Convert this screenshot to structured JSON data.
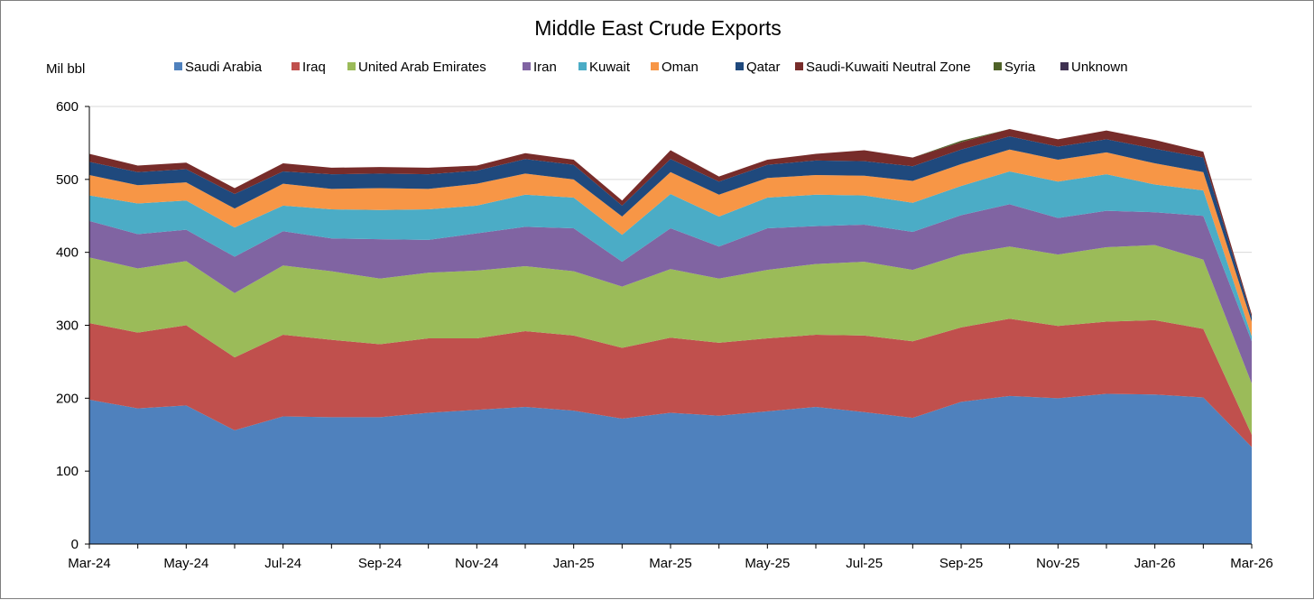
{
  "chart_data": {
    "type": "area",
    "stacked": true,
    "title": "Middle East Crude Exports",
    "ylabel": "Mil bbl",
    "xlabel": "",
    "ylim": [
      0,
      600
    ],
    "yticks": [
      0,
      100,
      200,
      300,
      400,
      500,
      600
    ],
    "grid": true,
    "legend_position": "top",
    "x": [
      "Mar-24",
      "Apr-24",
      "May-24",
      "Jun-24",
      "Jul-24",
      "Aug-24",
      "Sep-24",
      "Oct-24",
      "Nov-24",
      "Dec-24",
      "Jan-25",
      "Feb-25",
      "Mar-25",
      "Apr-25",
      "May-25",
      "Jun-25",
      "Jul-25",
      "Aug-25",
      "Sep-25",
      "Oct-25",
      "Nov-25",
      "Dec-25",
      "Jan-26",
      "Feb-26",
      "Mar-26"
    ],
    "xtick_labels": [
      "Mar-24",
      "May-24",
      "Jul-24",
      "Sep-24",
      "Nov-24",
      "Jan-25",
      "Mar-25",
      "May-25",
      "Jul-25",
      "Sep-25",
      "Nov-25",
      "Jan-26",
      "Mar-26"
    ],
    "series": [
      {
        "name": "Saudi Arabia",
        "color": "#4f81bd",
        "values": [
          198,
          186,
          190,
          156,
          175,
          174,
          174,
          180,
          184,
          188,
          183,
          172,
          180,
          176,
          182,
          188,
          181,
          173,
          195,
          203,
          200,
          206,
          205,
          201,
          133
        ]
      },
      {
        "name": "Iraq",
        "color": "#c0504d",
        "values": [
          105,
          104,
          110,
          100,
          112,
          106,
          100,
          102,
          98,
          104,
          103,
          97,
          103,
          100,
          100,
          99,
          105,
          105,
          102,
          106,
          99,
          99,
          102,
          94,
          17
        ]
      },
      {
        "name": "United Arab Emirates",
        "color": "#9bbb59",
        "values": [
          90,
          88,
          88,
          88,
          95,
          94,
          90,
          90,
          93,
          89,
          88,
          84,
          94,
          88,
          94,
          97,
          101,
          98,
          100,
          99,
          98,
          102,
          103,
          95,
          70
        ]
      },
      {
        "name": "Iran",
        "color": "#8064a2",
        "values": [
          50,
          47,
          43,
          50,
          47,
          45,
          54,
          45,
          51,
          54,
          59,
          34,
          56,
          44,
          57,
          52,
          51,
          52,
          54,
          58,
          50,
          50,
          45,
          60,
          58
        ]
      },
      {
        "name": "Kuwait",
        "color": "#4bacc6",
        "values": [
          35,
          42,
          40,
          40,
          35,
          40,
          40,
          42,
          38,
          44,
          42,
          37,
          47,
          41,
          42,
          43,
          40,
          40,
          40,
          45,
          50,
          50,
          38,
          35,
          7
        ]
      },
      {
        "name": "Oman",
        "color": "#f79646",
        "values": [
          28,
          25,
          25,
          26,
          30,
          28,
          30,
          28,
          30,
          29,
          25,
          25,
          30,
          30,
          27,
          27,
          27,
          30,
          30,
          30,
          30,
          30,
          29,
          25,
          20
        ]
      },
      {
        "name": "Qatar",
        "color": "#1f497d",
        "values": [
          18,
          18,
          18,
          20,
          17,
          20,
          20,
          20,
          18,
          20,
          20,
          15,
          18,
          18,
          18,
          20,
          20,
          20,
          20,
          18,
          18,
          18,
          20,
          20,
          6
        ]
      },
      {
        "name": "Saudi-Kuwaiti Neutral Zone",
        "color": "#772c2a",
        "values": [
          11,
          9,
          9,
          8,
          11,
          9,
          9,
          9,
          7,
          8,
          7,
          7,
          12,
          7,
          7,
          9,
          15,
          12,
          10,
          10,
          10,
          12,
          12,
          8,
          4
        ]
      },
      {
        "name": "Syria",
        "color": "#4f6228",
        "values": [
          0,
          0,
          0,
          0,
          0,
          0,
          0,
          0,
          0,
          0,
          0,
          0,
          0,
          0,
          0,
          0,
          0,
          0,
          2,
          0,
          0,
          0,
          0,
          0,
          0
        ]
      },
      {
        "name": "Unknown",
        "color": "#3f3151",
        "values": [
          0,
          0,
          0,
          0,
          0,
          0,
          0,
          0,
          0,
          0,
          0,
          0,
          0,
          0,
          0,
          0,
          0,
          0,
          0,
          0,
          0,
          0,
          0,
          0,
          0
        ]
      }
    ]
  }
}
